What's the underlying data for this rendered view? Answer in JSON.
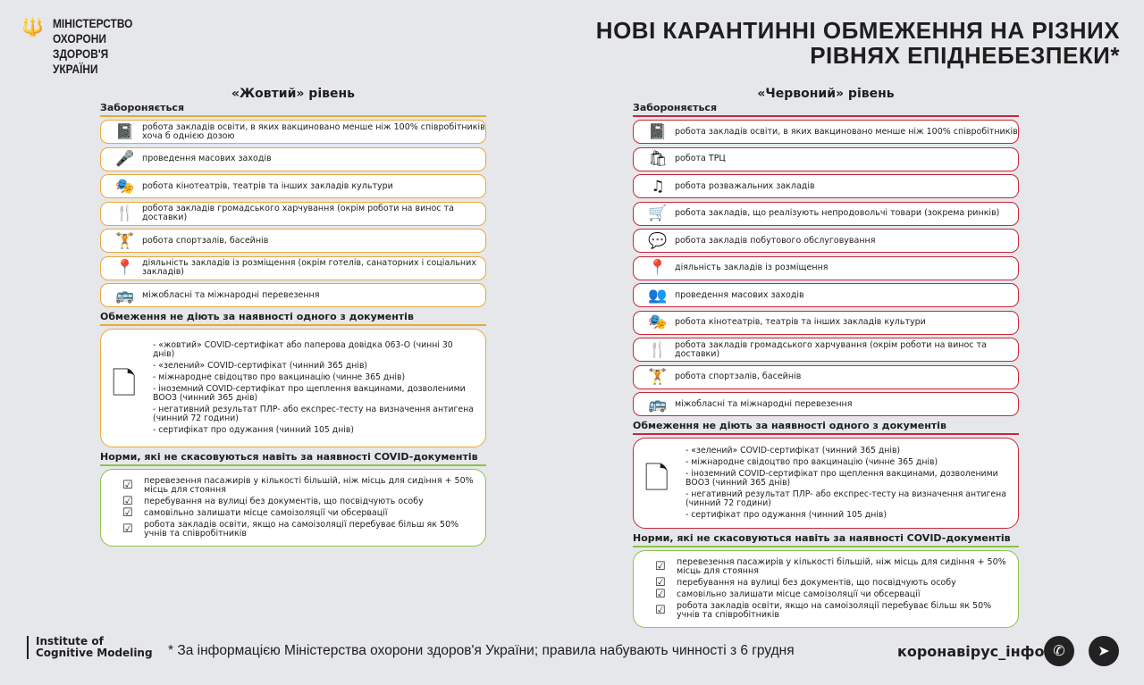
{
  "header": {
    "ministry": [
      "МІНІСТЕРСТВО",
      "ОХОРОНИ",
      "ЗДОРОВ'Я",
      "УКРАЇНИ"
    ],
    "title": [
      "НОВІ КАРАНТИННІ ОБМЕЖЕННЯ НА РІЗНИХ",
      "РІВНЯХ ЕПІДНЕБЕЗПЕКИ*"
    ]
  },
  "colors": {
    "yellow": "#e8a93a",
    "red": "#c8283a",
    "green": "#8dc24a"
  },
  "yellow": {
    "title": "«Жовтий» рівень",
    "forbidden_label": "Забороняється",
    "forbidden": [
      {
        "icon": "book-icon",
        "text": "робота закладів освіти, в яких вакциновано менше ніж 100% співробітників хоча б однією дозою"
      },
      {
        "icon": "microphone-icon",
        "text": "проведення масових заходів"
      },
      {
        "icon": "cinema-icon",
        "text": "робота кінотеатрів, театрів та інших закладів культури"
      },
      {
        "icon": "restaurant-icon",
        "text": "робота закладів громадського харчування (окрім роботи на винос та доставки)"
      },
      {
        "icon": "gym-icon",
        "text": "робота спортзалів, басейнів"
      },
      {
        "icon": "location-pin-icon",
        "text": "діяльність закладів із розміщення (окрім готелів, санаторних і соціальних закладів)"
      },
      {
        "icon": "bus-icon",
        "text": "міжобласні та міжнародні перевезення"
      }
    ],
    "docs_label": "Обмеження не діють за наявності одного з документів",
    "docs": [
      "- «жовтий» COVID-сертифікат або паперова довідка 063-О (чинні 30 днів)",
      "- «зелений» COVID-сертифікат (чинний 365 днів)",
      "- міжнародне свідоцтво про вакцинацію (чинне 365 днів)",
      "- іноземний COVID-сертифікат про щеплення вакцинами, дозволеними ВООЗ (чинний 365 днів)",
      "- негативний результат ПЛР- або експрес-тесту на визначення антигена (чинний 72 години)",
      "- сертифікат про одужання (чинний 105 днів)"
    ],
    "norms_label": "Норми, які не скасовуються навіть за наявності COVID-документів",
    "norms": [
      "перевезення пасажирів у кількості більшій, ніж місць для сидіння + 50% місць для стояння",
      "перебування на вулиці без документів, що посвідчують особу",
      "самовільно залишати місце самоізоляції чи обсервації",
      "робота закладів освіти, якщо на самоізоляції перебуває більш як 50% учнів та співробітників"
    ]
  },
  "red": {
    "title": "«Червоний» рівень",
    "forbidden_label": "Забороняється",
    "forbidden": [
      {
        "icon": "book-icon",
        "text": "робота закладів освіти, в яких вакциновано менше ніж 100% співробітників"
      },
      {
        "icon": "shopping-bag-icon",
        "text": "робота ТРЦ"
      },
      {
        "icon": "music-note-icon",
        "text": "робота розважальних закладів"
      },
      {
        "icon": "shopping-cart-icon",
        "text": "робота закладів, що реалізують непродовольчі товари (зокрема ринків)"
      },
      {
        "icon": "speech-bubble-icon",
        "text": "робота закладів побутового обслуговування"
      },
      {
        "icon": "location-pin-icon",
        "text": "діяльність закладів із розміщення"
      },
      {
        "icon": "crowd-icon",
        "text": "проведення масових заходів"
      },
      {
        "icon": "cinema-icon",
        "text": "робота кінотеатрів, театрів та інших закладів культури"
      },
      {
        "icon": "restaurant-icon",
        "text": "робота закладів громадського харчування (окрім роботи на винос та доставки)"
      },
      {
        "icon": "gym-icon",
        "text": "робота спортзалів, басейнів"
      },
      {
        "icon": "bus-icon",
        "text": "міжобласні та міжнародні перевезення"
      }
    ],
    "docs_label": "Обмеження не діють за наявності одного з документів",
    "docs": [
      "- «зелений» COVID-сертифікат (чинний 365 днів)",
      "- міжнародне свідоцтво про вакцинацію (чинне 365 днів)",
      "- іноземний COVID-сертифікат про щеплення вакцинами, дозволеними ВООЗ (чинний 365 днів)",
      "- негативний результат ПЛР- або експрес-тесту на визначення антигена (чинний 72 години)",
      "- сертифікат про одужання (чинний 105 днів)"
    ],
    "norms_label": "Норми, які не скасовуються навіть за наявності COVID-документів",
    "norms": [
      "перевезення пасажирів у кількості більшій, ніж місць для сидіння + 50% місць для стояння",
      "перебування на вулиці без документів, що посвідчують особу",
      "самовільно залишати місце самоізоляції чи обсервації",
      "робота закладів освіти, якщо на самоізоляції перебуває більш як 50% учнів та співробітників"
    ]
  },
  "footer": {
    "logo": [
      "Institute of",
      "Cognitive Modeling"
    ],
    "note": "* За інформацією Міністерства охорони здоров'я України; правила набувають чинності з 6 грудня",
    "hashtag": "коронавірус_інфо"
  }
}
